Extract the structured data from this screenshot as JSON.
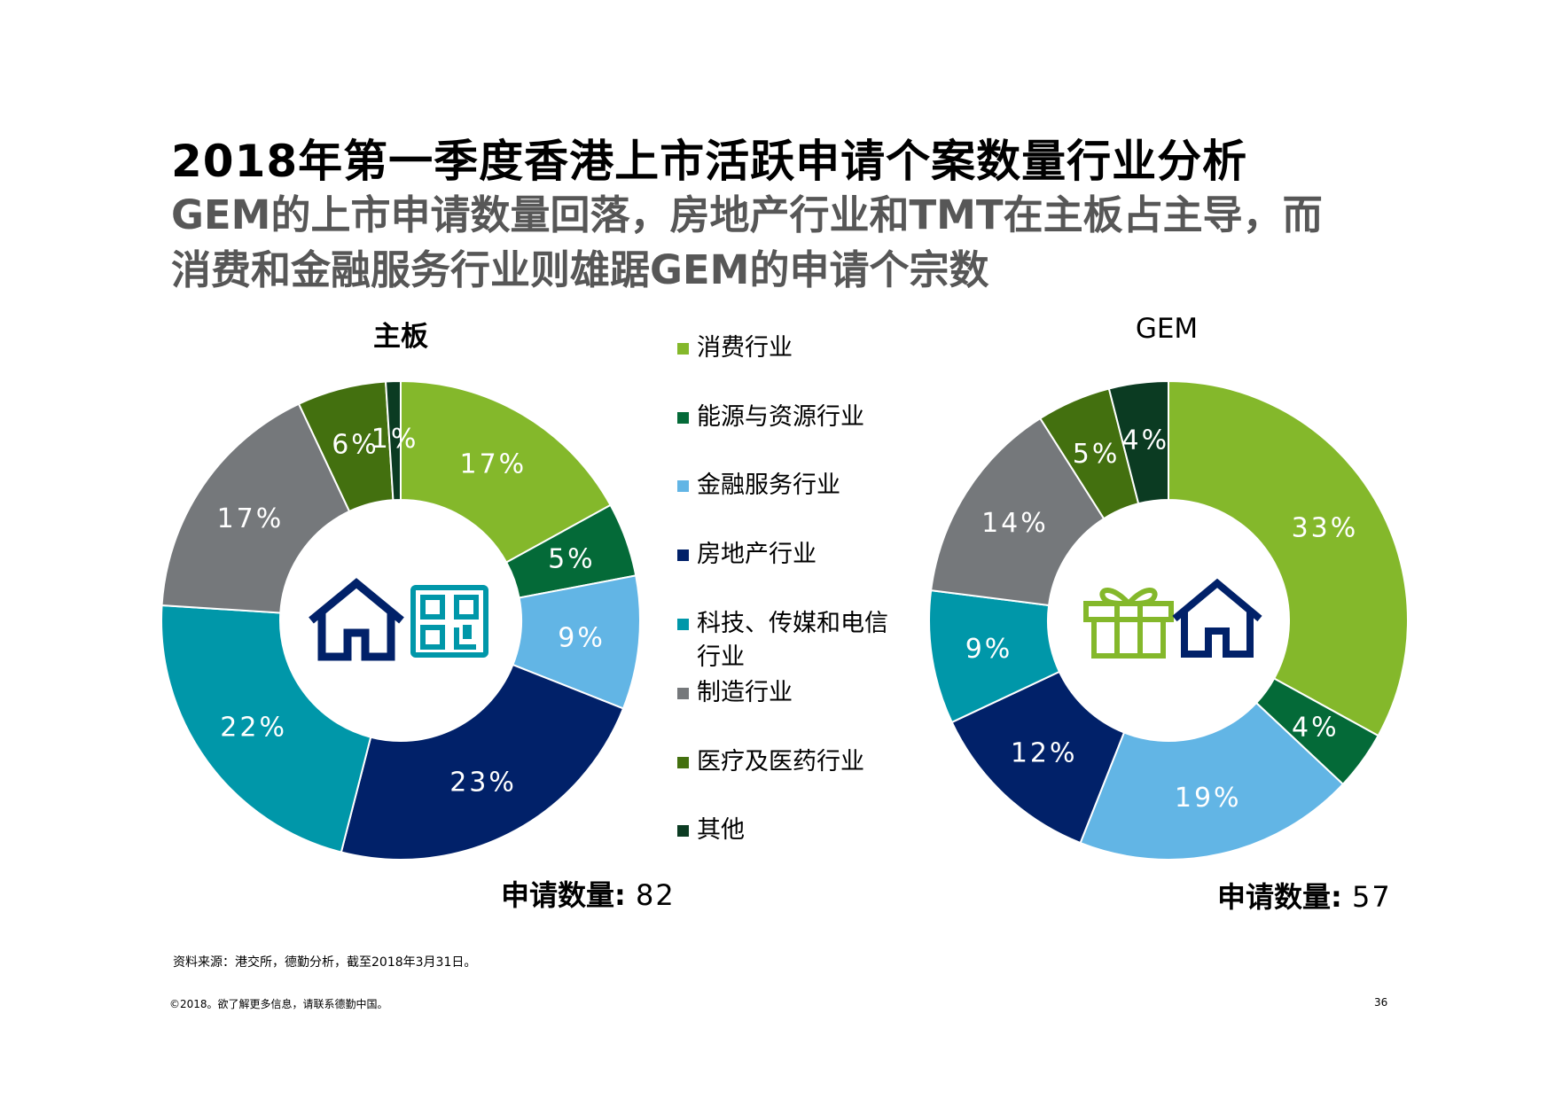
{
  "title": "2018年第一季度香港上市活跃申请个案数量行业分析",
  "subtitle": "GEM的上市申请数量回落，房地产行业和TMT在主板占主导，而消费和金融服务行业则雄踞GEM的申请个宗数",
  "legend": [
    {
      "label": "消费行业",
      "color": "#84b82b"
    },
    {
      "label": "能源与资源行业",
      "color": "#046a38"
    },
    {
      "label": "金融服务行业",
      "color": "#62b5e5"
    },
    {
      "label": "房地产行业",
      "color": "#012169"
    },
    {
      "label": "科技、传媒和电信行业",
      "color": "#0097a9"
    },
    {
      "label": "制造行业",
      "color": "#75787b"
    },
    {
      "label": "医疗及医药行业",
      "color": "#43700f"
    },
    {
      "label": "其他",
      "color": "#0b3b22"
    }
  ],
  "chart_data": [
    {
      "type": "pie",
      "title": "主板",
      "categories": [
        "消费行业",
        "能源与资源行业",
        "金融服务行业",
        "房地产行业",
        "科技、传媒和电信行业",
        "制造行业",
        "医疗及医药行业",
        "其他"
      ],
      "values": [
        17,
        5,
        9,
        23,
        22,
        17,
        6,
        1
      ],
      "labels": [
        "17%",
        "5%",
        "9%",
        "23%",
        "22%",
        "17%",
        "6%",
        "1%"
      ],
      "count_label": "申请数量",
      "count": "82",
      "icons": [
        "house-icon",
        "qr-code-icon"
      ]
    },
    {
      "type": "pie",
      "title": "GEM",
      "categories": [
        "消费行业",
        "能源与资源行业",
        "金融服务行业",
        "房地产行业",
        "科技、传媒和电信行业",
        "制造行业",
        "医疗及医药行业",
        "其他"
      ],
      "values": [
        33,
        4,
        19,
        12,
        9,
        14,
        5,
        4
      ],
      "labels": [
        "33%",
        "4%",
        "19%",
        "12%",
        "9%",
        "14%",
        "5%",
        "4%"
      ],
      "count_label": "申请数量",
      "count": "57",
      "icons": [
        "gift-icon",
        "house-icon"
      ]
    }
  ],
  "footer": {
    "source": "资料来源：港交所，德勤分析，截至2018年3月31日。",
    "copyright": "©2018。欲了解更多信息，请联系德勤中国。",
    "page": "36"
  }
}
